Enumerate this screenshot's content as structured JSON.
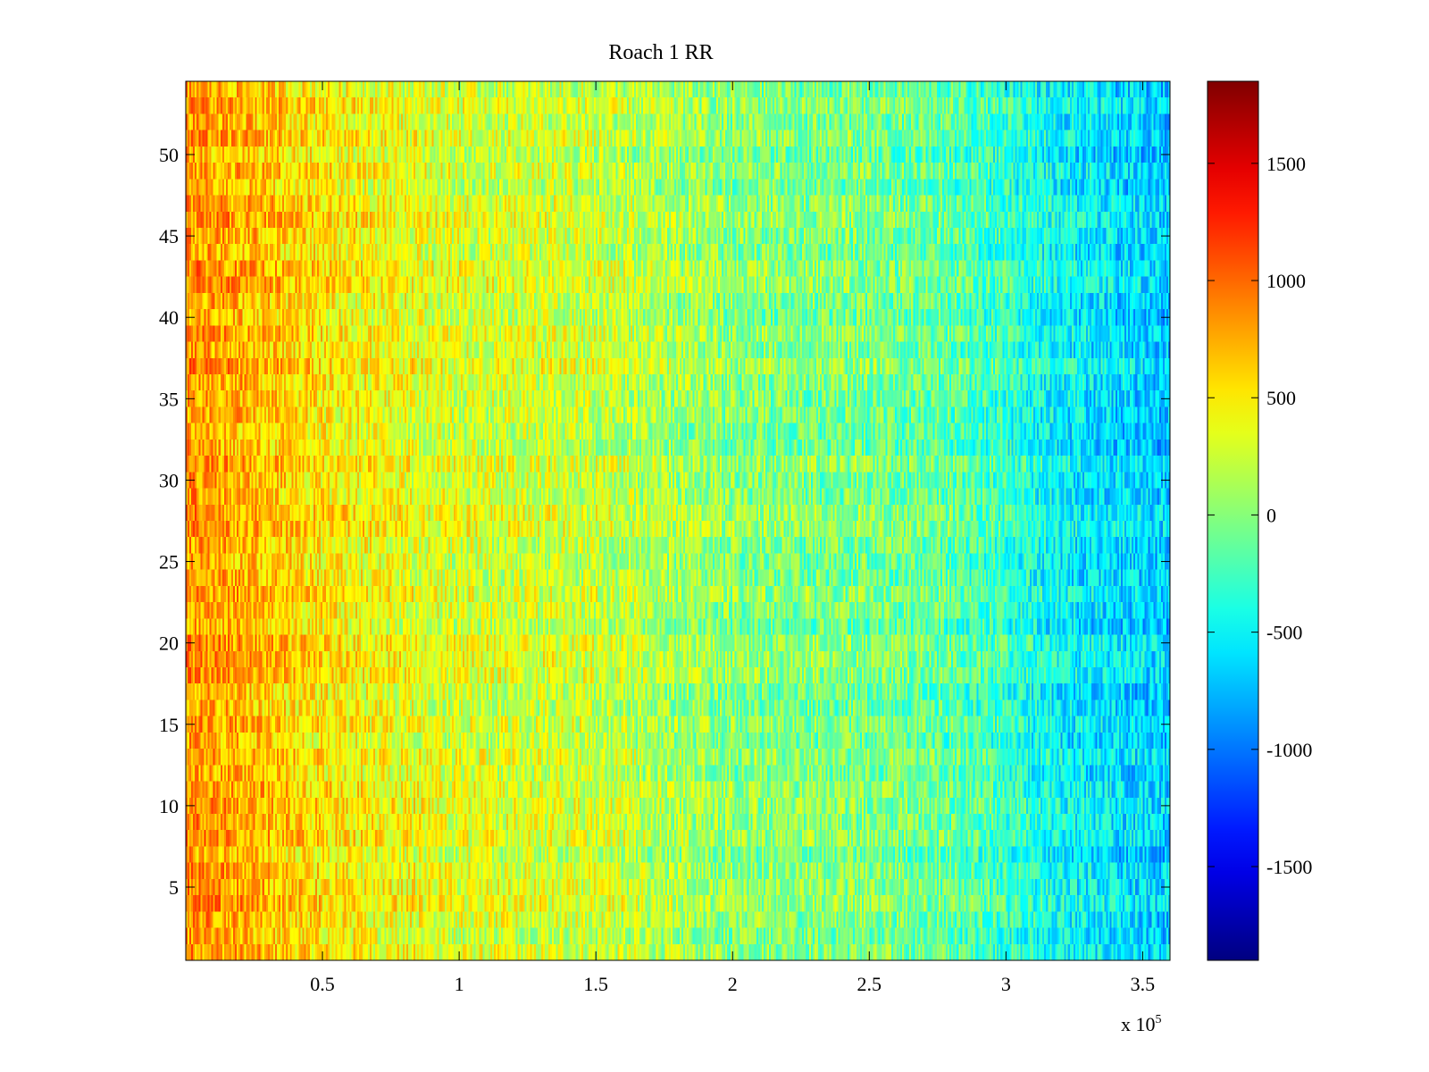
{
  "chart_data": {
    "type": "heatmap",
    "title": "Roach 1 RR",
    "xlabel": "",
    "ylabel": "",
    "x_multiplier_label": "x 10",
    "x_multiplier_exponent": "5",
    "xlim": [
      0,
      3.6
    ],
    "ylim": [
      0.5,
      54.5
    ],
    "rows": 54,
    "xticks": [
      0.5,
      1,
      1.5,
      2,
      2.5,
      3,
      3.5
    ],
    "xtick_labels": [
      "0.5",
      "1",
      "1.5",
      "2",
      "2.5",
      "3",
      "3.5"
    ],
    "yticks": [
      5,
      10,
      15,
      20,
      25,
      30,
      35,
      40,
      45,
      50
    ],
    "ytick_labels": [
      "5",
      "10",
      "15",
      "20",
      "25",
      "30",
      "35",
      "40",
      "45",
      "50"
    ],
    "colormap": "jet",
    "clim": [
      -1900,
      1850
    ],
    "colorbar_ticks": [
      1500,
      1000,
      500,
      0,
      -500,
      -1000,
      -1500
    ],
    "colorbar_tick_labels": [
      "1500",
      "1000",
      "500",
      "0",
      "-500",
      "-1000",
      "-1500"
    ],
    "trend_profile": {
      "x": [
        0,
        0.25,
        0.5,
        1.0,
        1.5,
        2.0,
        2.5,
        2.8,
        3.0,
        3.2,
        3.6
      ],
      "value": [
        850,
        700,
        500,
        300,
        250,
        0,
        -50,
        -150,
        -300,
        -500,
        -700
      ]
    },
    "noise_amplitude": 350,
    "grid": false,
    "legend": "none"
  }
}
